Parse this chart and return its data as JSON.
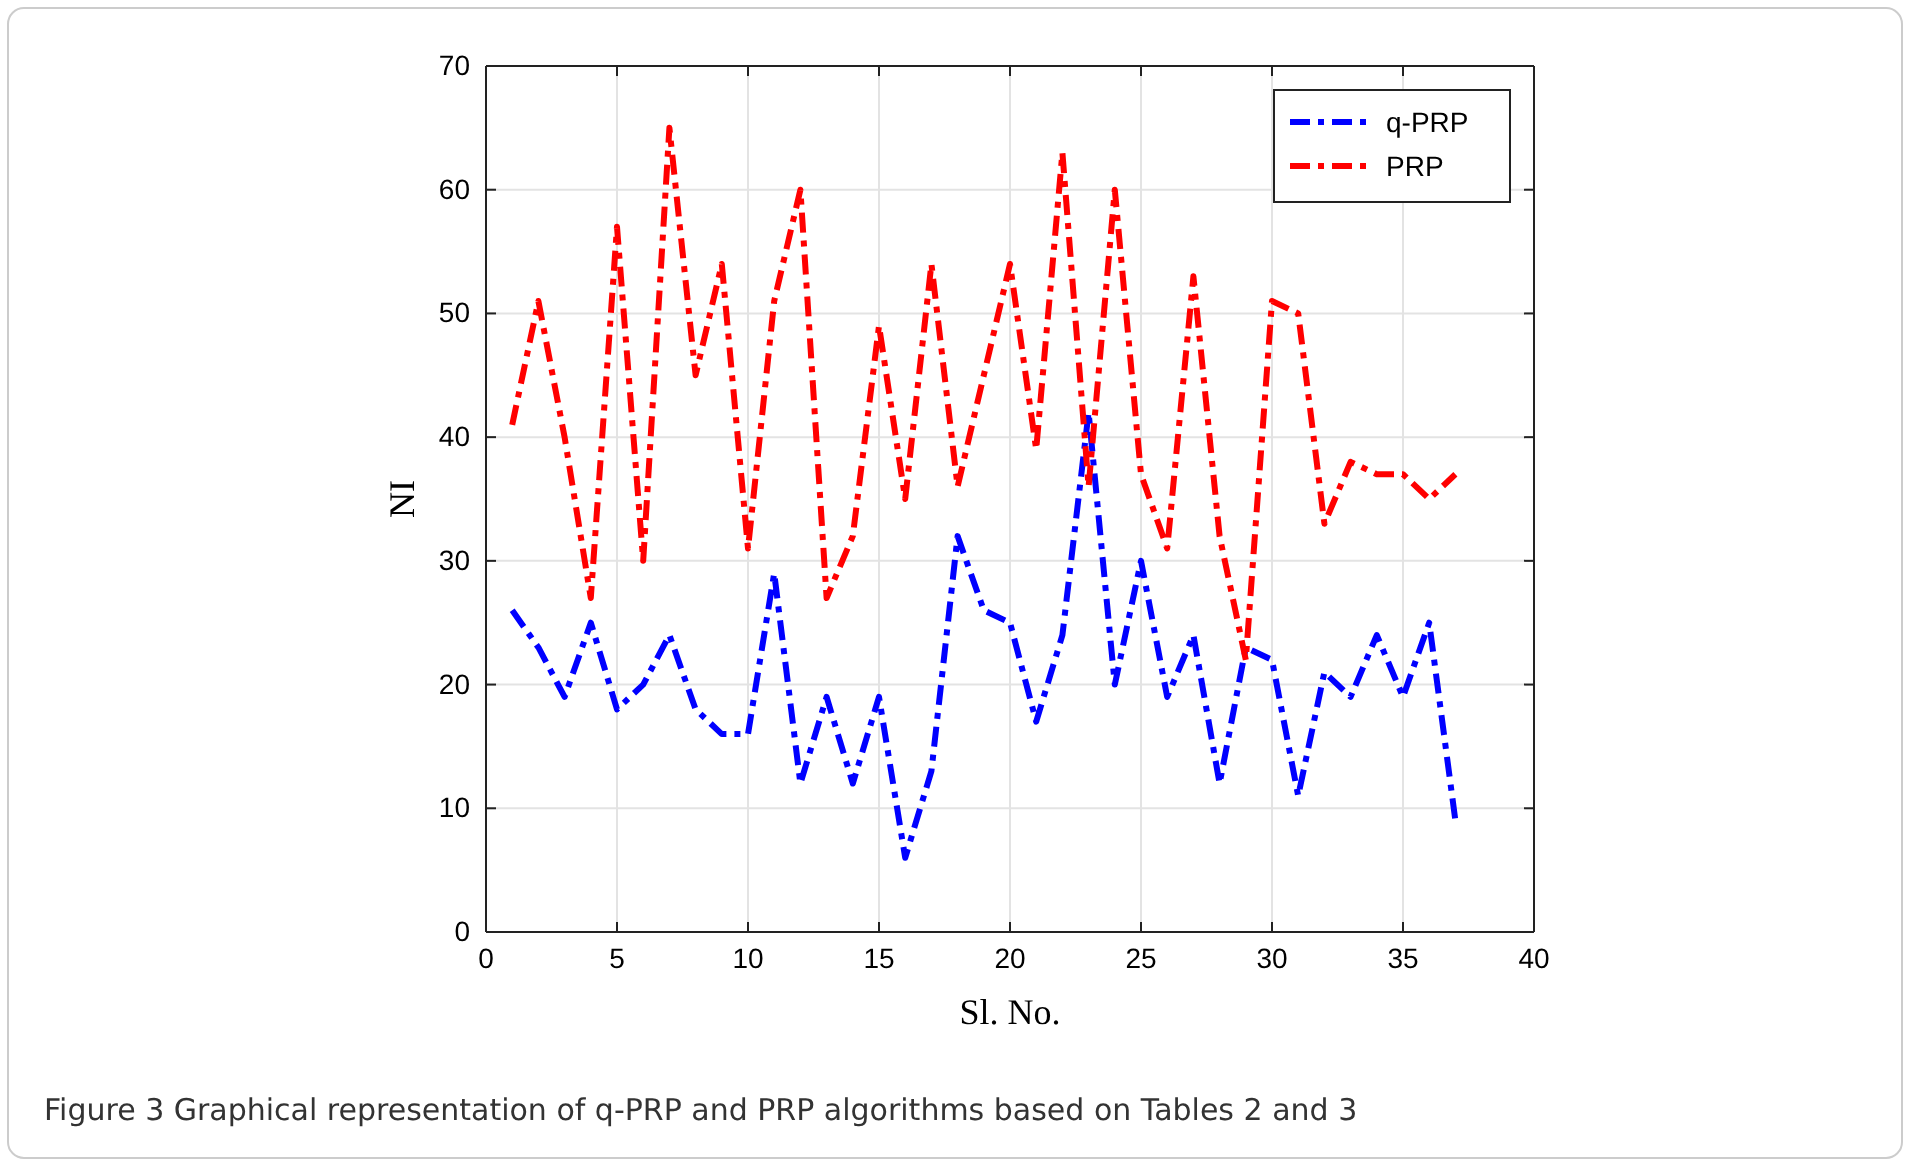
{
  "chart_data": {
    "type": "line",
    "xlabel": "Sl. No.",
    "ylabel": "NI",
    "x": [
      1,
      2,
      3,
      4,
      5,
      6,
      7,
      8,
      9,
      10,
      11,
      12,
      13,
      14,
      15,
      16,
      17,
      18,
      19,
      20,
      21,
      22,
      23,
      24,
      25,
      26,
      27,
      28,
      29,
      30,
      31,
      32,
      33,
      34,
      35,
      36,
      37
    ],
    "series": [
      {
        "name": "q-PRP",
        "color": "#0000ff",
        "values": [
          26,
          23,
          19,
          25,
          18,
          20,
          24,
          18,
          16,
          16,
          29,
          12,
          19,
          12,
          19,
          6,
          13,
          32,
          26,
          25,
          17,
          24,
          42,
          20,
          30,
          19,
          24,
          12,
          23,
          22,
          11,
          21,
          19,
          24,
          19,
          25,
          9
        ]
      },
      {
        "name": "PRP",
        "color": "#ff0000",
        "values": [
          41,
          51,
          40,
          27,
          57,
          30,
          65,
          45,
          54,
          31,
          51,
          60,
          27,
          32,
          49,
          35,
          54,
          36,
          45,
          54,
          39,
          63,
          36,
          60,
          37,
          31,
          53,
          32,
          22,
          51,
          50,
          33,
          38,
          37,
          37,
          35,
          37
        ]
      }
    ],
    "xlim": [
      0,
      40
    ],
    "xticks": [
      0,
      5,
      10,
      15,
      20,
      25,
      30,
      35,
      40
    ],
    "ylim": [
      0,
      70
    ],
    "yticks": [
      0,
      10,
      20,
      30,
      40,
      50,
      60,
      70
    ],
    "grid": true,
    "legend": "top right",
    "line_style": "dashed",
    "marker": "none",
    "annotations": [
      "Figure 3 Graphical representation of q-PRP and PRP algorithms based on Tables 2 and 3"
    ]
  }
}
